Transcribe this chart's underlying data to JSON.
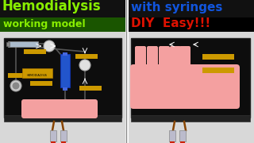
{
  "bg_color": "#ffffff",
  "title_left_line1": "Hemodialysis",
  "title_left_line2": "working model",
  "title_right_line1": "with syringes",
  "title_right_line2": "DIY  Easy!!!",
  "title_left_color1": "#88ee00",
  "title_left_bg1": "#111111",
  "title_left_color2": "#88ee00",
  "title_left_bg2": "#1a5500",
  "title_right_color1": "#1155dd",
  "title_right_bg1": "#111111",
  "title_right_color2": "#dd1100",
  "title_right_bg2": "#000000",
  "board_color": "#0d0d0d",
  "board_edge": "#222222",
  "white_bg": "#e8e8e8",
  "syringe_color": "#aabbcc",
  "syringe_cap": "#cc2200",
  "tube_color": "#884400",
  "hand_color": "#f4a0a0",
  "circle_color": "#dddddd",
  "blue_cyl": "#2255cc",
  "yellow_lbl": "#cc9900",
  "arrow_color": "#ffffff"
}
